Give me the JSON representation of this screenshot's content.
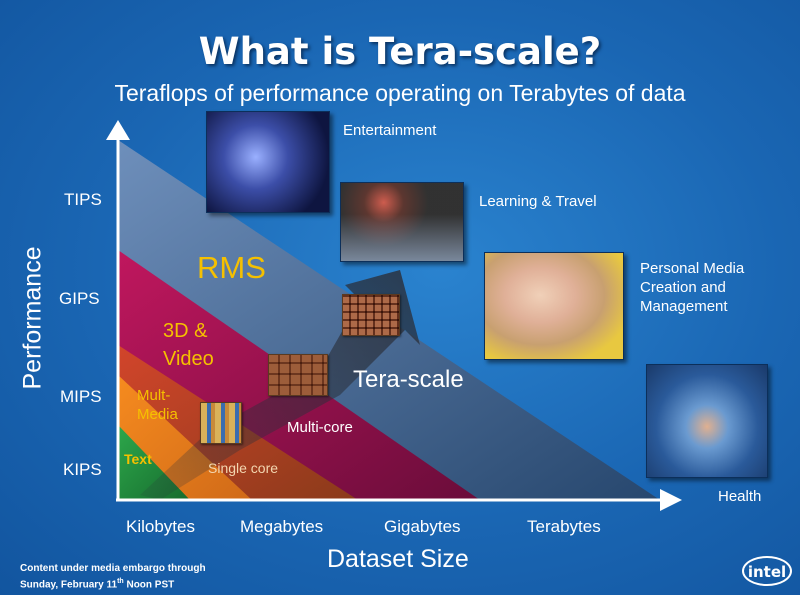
{
  "title": "What is Tera-scale?",
  "subtitle": "Teraflops of performance operating on Terabytes of data",
  "y_axis": {
    "title": "Performance",
    "levels": [
      "TIPS",
      "GIPS",
      "MIPS",
      "KIPS"
    ]
  },
  "x_axis": {
    "title": "Dataset Size",
    "levels": [
      "Kilobytes",
      "Megabytes",
      "Gigabytes",
      "Terabytes"
    ]
  },
  "zones": {
    "text": "Text",
    "multimedia_line1": "Mult-",
    "multimedia_line2": "Media",
    "video_line1": "3D &",
    "video_line2": "Video",
    "rms": "RMS",
    "single_core": "Single core",
    "multi_core": "Multi-core",
    "tera_scale": "Tera-scale"
  },
  "applications": {
    "entertainment": "Entertainment",
    "learning_travel": "Learning & Travel",
    "personal_media_line1": "Personal Media",
    "personal_media_line2": "Creation and",
    "personal_media_line3": "Management",
    "health": "Health"
  },
  "footer": {
    "line1": "Content under media embargo through",
    "line2_pre": "Sunday, February 11",
    "line2_sup": "th",
    "line2_post": " Noon PST"
  },
  "logo": "intel",
  "colors": {
    "background": "#1a66b3",
    "tera_scale_zone": "#2f5582",
    "rms_zone": "#a0134f",
    "video_zone": "#b25a22",
    "multimedia_zone": "#f07d22",
    "text_zone": "#1f8a3b",
    "label_yellow": "#f5c000"
  }
}
